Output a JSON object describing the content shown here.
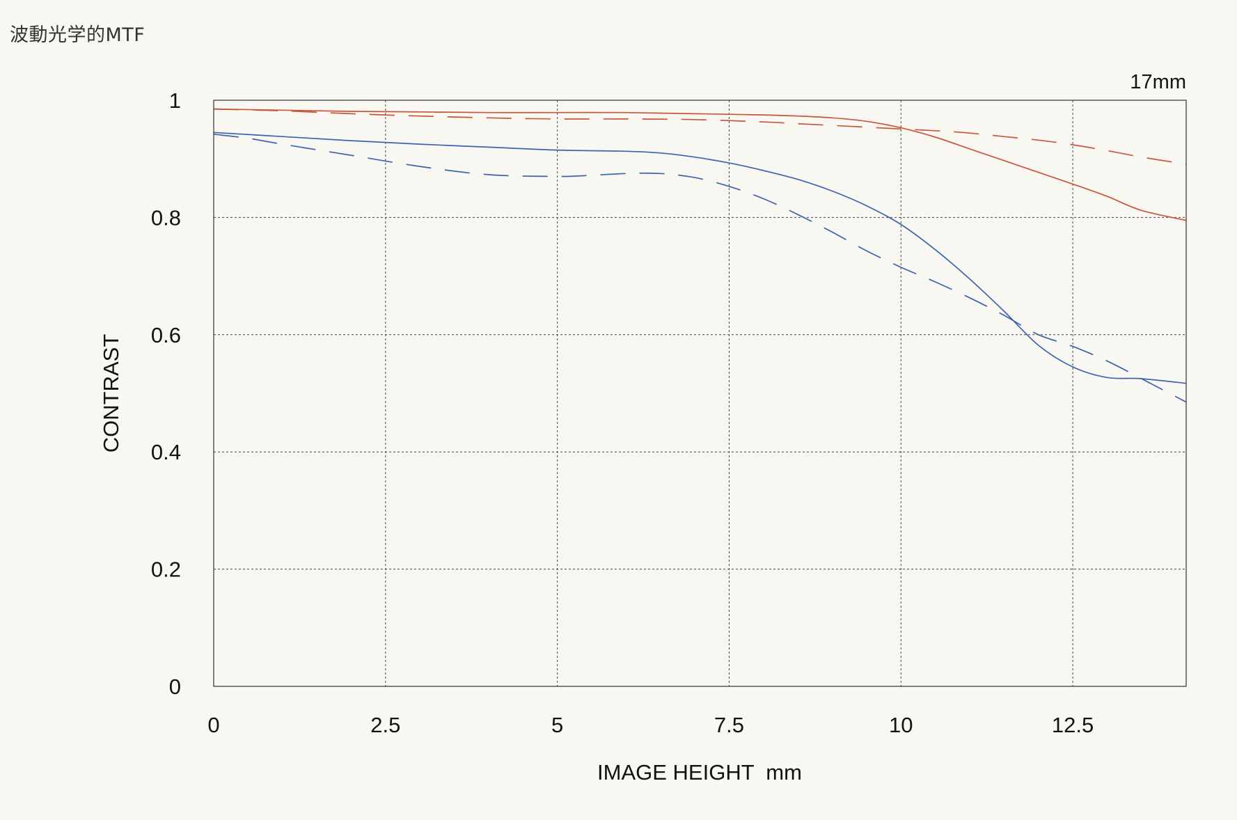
{
  "page": {
    "title": "波動光学的MTF"
  },
  "chart_data": {
    "type": "line",
    "annotation": "17mm",
    "xlabel": "IMAGE HEIGHT  mm",
    "ylabel": "CONTRAST",
    "xlim": [
      0,
      14.15
    ],
    "ylim": [
      0,
      1
    ],
    "x_ticks": [
      0,
      2.5,
      5,
      7.5,
      10,
      12.5
    ],
    "y_ticks": [
      0,
      0.2,
      0.4,
      0.6,
      0.8,
      1
    ],
    "x_tick_labels": [
      "0",
      "2.5",
      "5",
      "7.5",
      "10",
      "12.5"
    ],
    "y_tick_labels": [
      "0",
      "0.2",
      "0.4",
      "0.6",
      "0.8",
      "1"
    ],
    "grid": true,
    "series": [
      {
        "color": "#c9553a",
        "dash": "solid",
        "x": [
          0,
          1,
          2,
          3,
          4,
          5,
          6,
          7,
          8,
          8.5,
          9,
          9.5,
          10,
          10.5,
          11,
          11.5,
          12,
          12.5,
          13,
          13.5,
          14.15
        ],
        "y": [
          0.985,
          0.983,
          0.981,
          0.98,
          0.979,
          0.979,
          0.979,
          0.977,
          0.975,
          0.973,
          0.97,
          0.964,
          0.953,
          0.937,
          0.917,
          0.897,
          0.877,
          0.857,
          0.836,
          0.812,
          0.795
        ]
      },
      {
        "color": "#c9553a",
        "dash": "dashed",
        "x": [
          0,
          1,
          2,
          3,
          4,
          5,
          6,
          7,
          8,
          8.5,
          9,
          9.5,
          10,
          10.5,
          11,
          11.5,
          12,
          12.5,
          13,
          13.5,
          14.15
        ],
        "y": [
          0.985,
          0.982,
          0.977,
          0.973,
          0.97,
          0.968,
          0.968,
          0.967,
          0.963,
          0.96,
          0.957,
          0.954,
          0.951,
          0.948,
          0.944,
          0.938,
          0.932,
          0.924,
          0.914,
          0.903,
          0.891
        ]
      },
      {
        "color": "#3d63ad",
        "dash": "solid",
        "x": [
          0,
          1,
          2,
          3,
          4,
          5,
          6,
          6.5,
          7,
          7.5,
          8,
          8.5,
          9,
          9.5,
          10,
          10.5,
          11,
          11.5,
          12,
          12.5,
          13,
          13.5,
          14.15
        ],
        "y": [
          0.945,
          0.938,
          0.931,
          0.925,
          0.92,
          0.915,
          0.913,
          0.91,
          0.903,
          0.893,
          0.88,
          0.865,
          0.845,
          0.82,
          0.788,
          0.745,
          0.695,
          0.64,
          0.582,
          0.545,
          0.527,
          0.525,
          0.517
        ]
      },
      {
        "color": "#3d63ad",
        "dash": "dashed",
        "x": [
          0,
          0.5,
          1,
          2,
          3,
          4,
          5,
          5.5,
          6,
          6.5,
          7,
          7.5,
          8,
          8.5,
          9,
          9.5,
          10,
          10.5,
          11,
          11.5,
          12,
          12.5,
          13,
          13.5,
          14.15
        ],
        "y": [
          0.942,
          0.935,
          0.925,
          0.906,
          0.887,
          0.873,
          0.87,
          0.872,
          0.875,
          0.875,
          0.868,
          0.853,
          0.832,
          0.805,
          0.775,
          0.743,
          0.715,
          0.69,
          0.663,
          0.633,
          0.6,
          0.58,
          0.555,
          0.525,
          0.485
        ]
      }
    ]
  }
}
